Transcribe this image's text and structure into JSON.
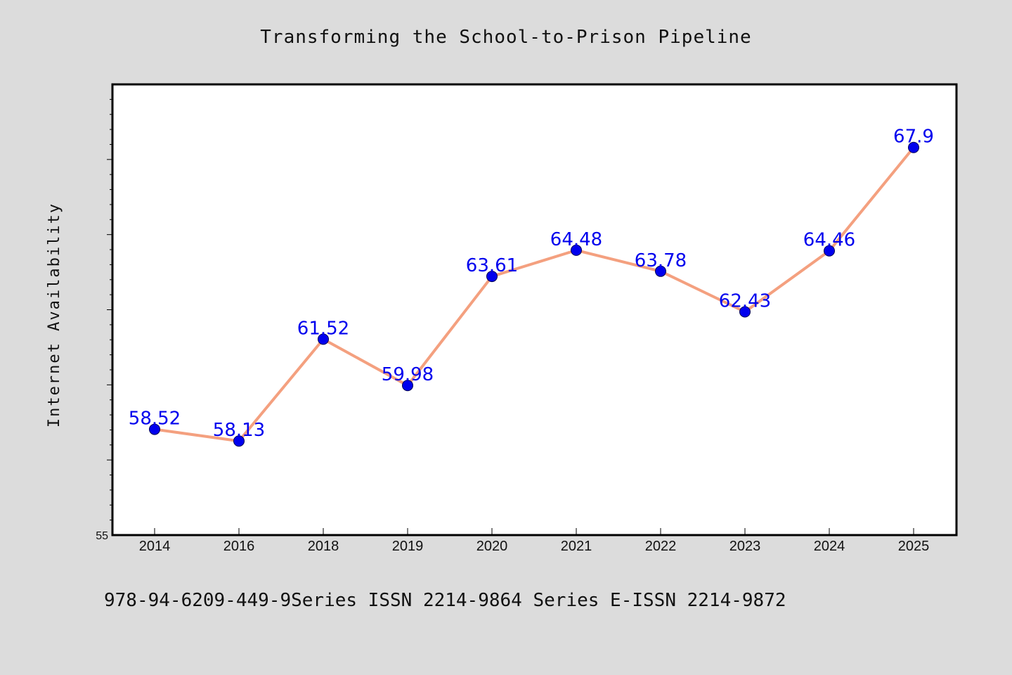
{
  "chart_data": {
    "type": "line",
    "title": "Transforming the School-to-Prison Pipeline",
    "xlabel": "",
    "ylabel": "Internet Availability",
    "categories": [
      "2014",
      "2016",
      "2018",
      "2019",
      "2020",
      "2021",
      "2022",
      "2023",
      "2024",
      "2025"
    ],
    "series": [
      {
        "values": [
          58.52,
          58.13,
          61.52,
          59.98,
          63.61,
          64.48,
          63.78,
          62.43,
          64.46,
          67.9
        ],
        "labels": [
          "58.52",
          "58.13",
          "61.52",
          "59.98",
          "63.61",
          "64.48",
          "63.78",
          "62.43",
          "64.46",
          "67.9"
        ],
        "line_color": "#f4a07f",
        "marker_color": "#0000ee"
      }
    ],
    "ylim": [
      55,
      70
    ],
    "ytick_labels": [
      "55"
    ],
    "grid": false,
    "legend": "none"
  },
  "footer": {
    "text": "978-94-6209-449-9Series ISSN 2214-9864 Series E-ISSN 2214-9872"
  },
  "colors": {
    "background": "#dcdcdc",
    "plot_background": "#ffffff",
    "line": "#f4a07f",
    "marker": "#0000ee",
    "data_label": "#0000ee"
  }
}
